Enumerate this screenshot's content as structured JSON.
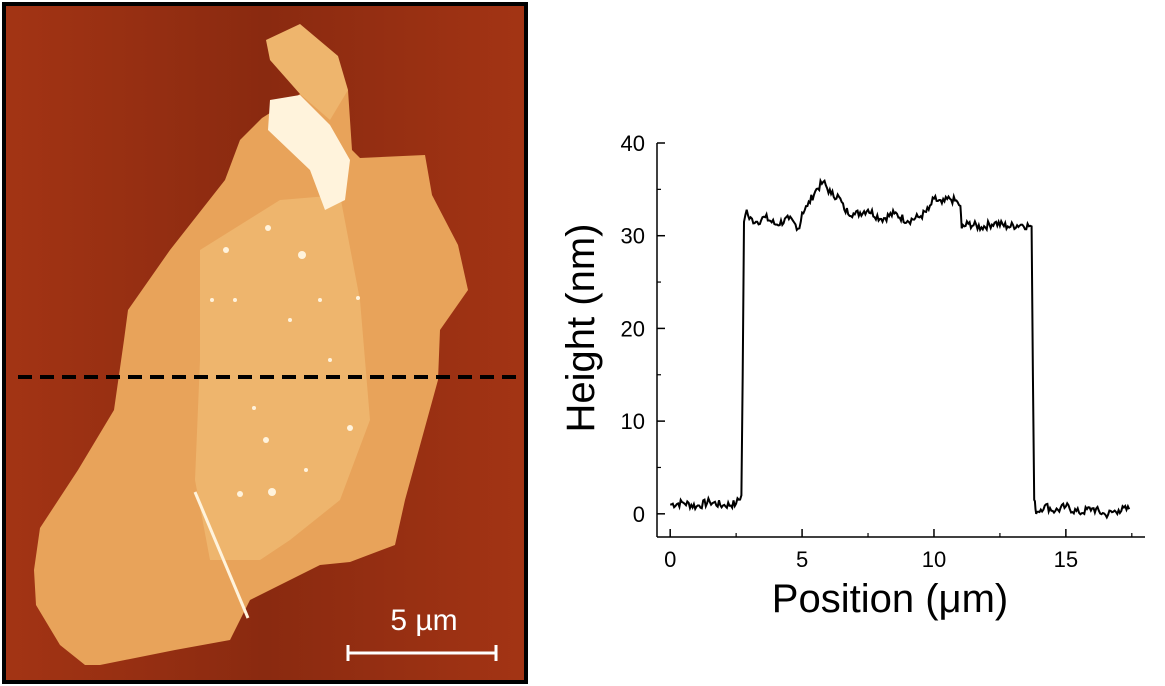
{
  "afm_image": {
    "scale_bar_label": "5 µm",
    "colors": {
      "substrate": "#8a2a10",
      "substrate_light": "#a33414",
      "flake": "#e8a35a",
      "flake_inner": "#eeb56d",
      "bright": "#fff3dc",
      "frame": "#000000",
      "line_cut": "#000000",
      "scale_bar": "#ffffff"
    }
  },
  "chart_data": {
    "type": "line",
    "xlabel": "Position (μm)",
    "ylabel": "Height (nm)",
    "xlim": [
      -0.5,
      18
    ],
    "ylim": [
      -2.5,
      40
    ],
    "xticks": [
      0,
      5,
      10,
      15
    ],
    "yticks": [
      0,
      10,
      20,
      30,
      40
    ],
    "grid": false,
    "series": [
      {
        "color": "#000000",
        "x": [
          0,
          0.5,
          1,
          1.5,
          2,
          2.5,
          2.7,
          2.75,
          2.8,
          2.9,
          3.0,
          3.3,
          3.6,
          4.0,
          4.5,
          4.9,
          5.0,
          5.2,
          5.5,
          5.8,
          6.1,
          6.4,
          6.6,
          7.0,
          7.5,
          8.0,
          8.5,
          9.0,
          9.5,
          9.8,
          10.0,
          10.3,
          10.6,
          10.9,
          11.0,
          11.05,
          11.3,
          11.8,
          12.3,
          12.8,
          13.3,
          13.7,
          13.75,
          13.8,
          13.85,
          13.9,
          14.2,
          14.6,
          15.0,
          15.5,
          16.0,
          16.5,
          17.0,
          17.4
        ],
        "y": [
          1.0,
          1.2,
          0.8,
          1.3,
          0.9,
          1.1,
          2.0,
          15.0,
          31.5,
          32.8,
          31.8,
          31.5,
          32.0,
          31.2,
          31.8,
          30.8,
          32.5,
          33.2,
          34.8,
          35.8,
          34.5,
          34.2,
          32.8,
          32.3,
          32.8,
          31.8,
          32.4,
          31.6,
          32.1,
          32.8,
          34.0,
          33.5,
          34.0,
          33.6,
          33.2,
          30.8,
          31.3,
          30.9,
          31.4,
          31.0,
          31.2,
          31.0,
          15.0,
          1.5,
          0.5,
          0.2,
          0.9,
          0.3,
          0.8,
          0.1,
          0.6,
          -0.1,
          0.4,
          0.5
        ]
      }
    ]
  }
}
